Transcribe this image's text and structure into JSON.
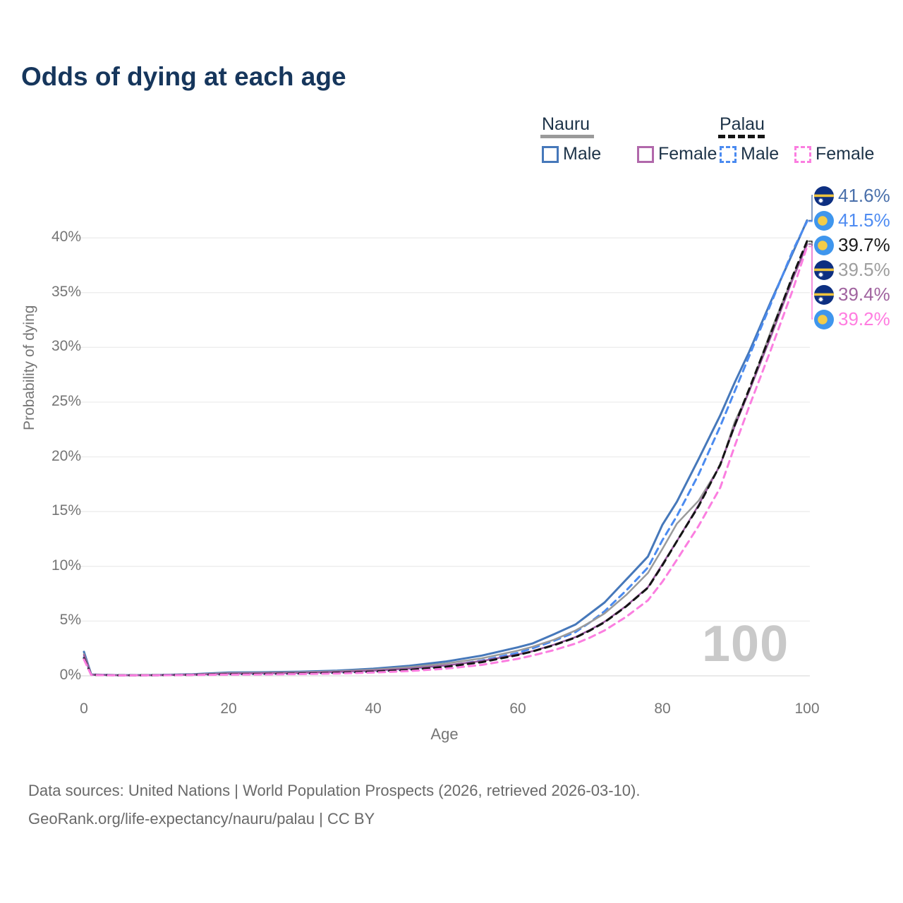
{
  "title": "Odds of dying at each age",
  "legend": {
    "groups": [
      {
        "name": "Nauru",
        "line_style": "solid",
        "underline_color": "#9a9a9a",
        "items": [
          {
            "label": "Male",
            "color": "#4678ba"
          },
          {
            "label": "Female",
            "color": "#b168ab"
          }
        ]
      },
      {
        "name": "Palau",
        "line_style": "dashed",
        "underline_color": "#151515",
        "items": [
          {
            "label": "Male",
            "color": "#4b8bf0"
          },
          {
            "label": "Female",
            "color": "#fb7ee0"
          }
        ]
      }
    ]
  },
  "watermark": "100",
  "footer": {
    "line1": "Data sources: United Nations | World Population Prospects (2026, retrieved 2026-03-10).",
    "line2": "GeoRank.org/life-expectancy/nauru/palau | CC BY"
  },
  "chart_data": {
    "type": "line",
    "title": "Odds of dying at each age",
    "xlabel": "Age",
    "ylabel": "Probability of dying",
    "xlim": [
      0,
      100
    ],
    "ylim": [
      0,
      43
    ],
    "xticks": [
      0,
      20,
      40,
      60,
      80,
      100
    ],
    "yticks": [
      0,
      5,
      10,
      15,
      20,
      25,
      30,
      35,
      40
    ],
    "ytick_suffix": "%",
    "grid": "horizontal",
    "legend_position": "top-right",
    "x": [
      0,
      1,
      5,
      10,
      15,
      20,
      25,
      30,
      35,
      40,
      45,
      50,
      55,
      60,
      62,
      65,
      68,
      70,
      72,
      75,
      78,
      80,
      82,
      85,
      88,
      90,
      92,
      95,
      98,
      100
    ],
    "series": [
      {
        "key": "nauru-male",
        "name": "Nauru Male",
        "color": "#4678ba",
        "dash": "solid",
        "width": 3,
        "values": [
          2.2,
          0.12,
          0.06,
          0.07,
          0.15,
          0.3,
          0.33,
          0.38,
          0.48,
          0.65,
          0.92,
          1.3,
          1.85,
          2.6,
          2.95,
          3.8,
          4.7,
          5.7,
          6.7,
          8.8,
          10.9,
          13.8,
          15.9,
          19.8,
          23.8,
          26.8,
          29.6,
          34.2,
          38.6,
          41.6
        ]
      },
      {
        "key": "palau-male",
        "name": "Palau Male",
        "color": "#4b8bf0",
        "dash": "dashed",
        "width": 3,
        "values": [
          1.7,
          0.1,
          0.05,
          0.06,
          0.1,
          0.15,
          0.18,
          0.22,
          0.3,
          0.42,
          0.6,
          0.9,
          1.4,
          2.1,
          2.5,
          3.2,
          4.0,
          4.9,
          5.9,
          7.8,
          9.9,
          12.4,
          14.6,
          18.4,
          22.8,
          26.0,
          29.2,
          34.0,
          38.8,
          41.5
        ]
      },
      {
        "key": "nauru-combined",
        "name": "Nauru (both sexes)",
        "color": "#9a9a9a",
        "dash": "solid",
        "width": 2.5,
        "values": [
          2.0,
          0.11,
          0.055,
          0.065,
          0.13,
          0.26,
          0.29,
          0.33,
          0.42,
          0.57,
          0.8,
          1.12,
          1.6,
          2.3,
          2.65,
          3.3,
          4.15,
          4.9,
          5.7,
          7.4,
          9.4,
          11.6,
          13.9,
          16.0,
          19.2,
          23.2,
          26.0,
          31.5,
          36.4,
          39.5
        ]
      },
      {
        "key": "nauru-female",
        "name": "Nauru Female",
        "color": "#99589d",
        "dash": "solid",
        "width": 2.5,
        "values": [
          1.9,
          0.1,
          0.05,
          0.06,
          0.11,
          0.2,
          0.24,
          0.28,
          0.36,
          0.48,
          0.66,
          0.95,
          1.35,
          1.95,
          2.25,
          2.85,
          3.55,
          4.2,
          4.95,
          6.4,
          8.1,
          10.2,
          12.3,
          15.6,
          19.3,
          22.8,
          26.0,
          31.0,
          36.2,
          39.4
        ]
      },
      {
        "key": "palau-combined",
        "name": "Palau (both sexes)",
        "color": "#151515",
        "dash": "dashed",
        "width": 3,
        "values": [
          1.6,
          0.09,
          0.045,
          0.055,
          0.09,
          0.14,
          0.17,
          0.2,
          0.27,
          0.38,
          0.55,
          0.82,
          1.25,
          1.9,
          2.22,
          2.8,
          3.5,
          4.15,
          4.9,
          6.35,
          8.05,
          10.1,
          12.3,
          15.5,
          19.3,
          22.9,
          26.2,
          31.3,
          36.5,
          39.7
        ]
      },
      {
        "key": "palau-female",
        "name": "Palau Female",
        "color": "#fb7ee0",
        "dash": "dashed",
        "width": 3,
        "values": [
          1.5,
          0.08,
          0.04,
          0.05,
          0.08,
          0.11,
          0.13,
          0.16,
          0.21,
          0.3,
          0.44,
          0.65,
          1.0,
          1.55,
          1.85,
          2.35,
          2.95,
          3.5,
          4.15,
          5.4,
          6.9,
          8.6,
          10.6,
          13.7,
          17.2,
          21.0,
          24.6,
          29.8,
          35.2,
          39.2
        ]
      }
    ],
    "end_labels": [
      {
        "series": "nauru-male",
        "value": "41.6%",
        "flag": "nauru",
        "color": "#4a70ab"
      },
      {
        "series": "palau-male",
        "value": "41.5%",
        "flag": "palau",
        "color": "#4f8cf2"
      },
      {
        "series": "palau-combined",
        "value": "39.7%",
        "flag": "palau",
        "color": "#1a1a1a"
      },
      {
        "series": "nauru-combined",
        "value": "39.5%",
        "flag": "nauru",
        "color": "#9e9e9e"
      },
      {
        "series": "nauru-female",
        "value": "39.4%",
        "flag": "nauru",
        "color": "#a0639f"
      },
      {
        "series": "palau-female",
        "value": "39.2%",
        "flag": "palau",
        "color": "#ff7ce0"
      }
    ],
    "flag_colors": {
      "nauru": {
        "field": "#0d2f81",
        "stripe": "#eec43e",
        "star": "#ffffff"
      },
      "palau": {
        "field": "#3f96ed",
        "disc": "#f3cc49"
      }
    }
  }
}
